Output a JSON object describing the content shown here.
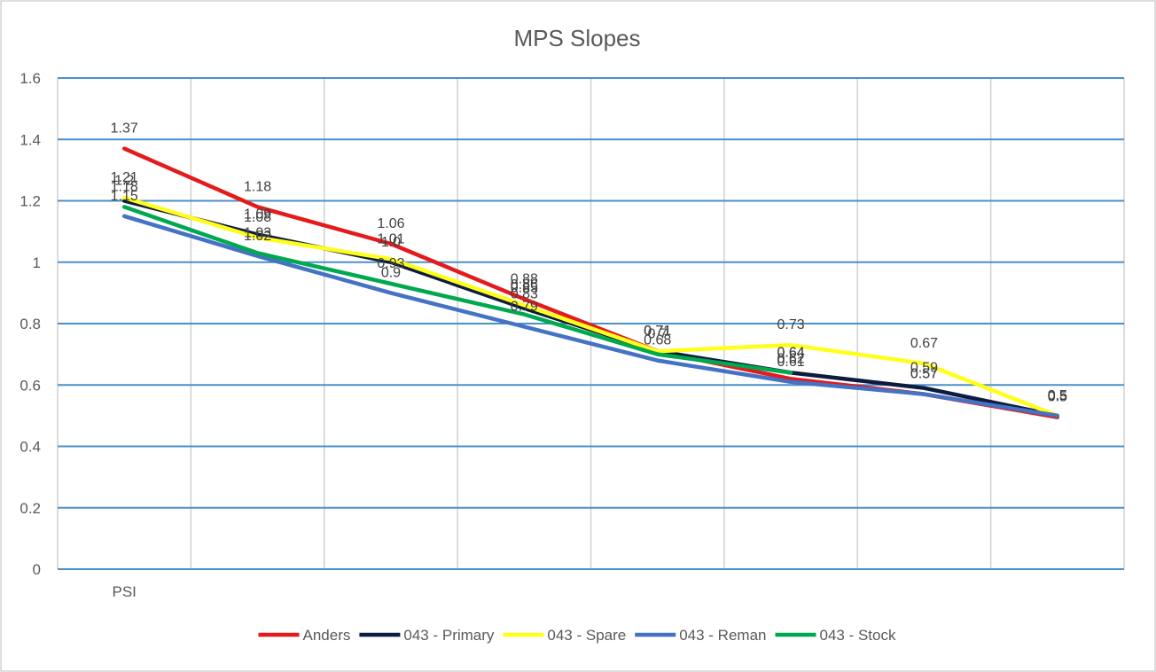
{
  "chart_data": {
    "type": "line",
    "title": "MPS Slopes",
    "xlabel": "",
    "ylabel": "",
    "x": [
      "PSI",
      "",
      "",
      "",
      "",
      "",
      "",
      ""
    ],
    "ylim": [
      0,
      1.6
    ],
    "yticks": [
      "0",
      "0.2",
      "0.4",
      "0.6",
      "0.8",
      "1",
      "1.2",
      "1.4",
      "1.6"
    ],
    "grid": true,
    "legend": "bottom",
    "series": [
      {
        "name": "Anders",
        "color": "#e41a1c",
        "values": [
          1.37,
          1.18,
          1.06,
          0.88,
          0.71,
          0.62,
          0.57,
          0.495
        ]
      },
      {
        "name": "043 - Primary",
        "color": "#0d1b3e",
        "values": [
          1.2,
          1.09,
          1.0,
          0.85,
          0.71,
          0.64,
          0.59,
          0.5
        ]
      },
      {
        "name": "043 - Spare",
        "color": "#ffff1a",
        "values": [
          1.21,
          1.08,
          1.01,
          0.86,
          0.71,
          0.73,
          0.67,
          0.5
        ]
      },
      {
        "name": "043 - Reman",
        "color": "#4472c4",
        "values": [
          1.15,
          1.02,
          0.9,
          0.79,
          0.68,
          0.61,
          0.57,
          0.5
        ]
      },
      {
        "name": "043 - Stock",
        "color": "#00a84f",
        "values": [
          1.18,
          1.03,
          0.93,
          0.83,
          0.7,
          0.64,
          null,
          null
        ]
      }
    ],
    "data_labels": [
      [
        "1.37",
        "1.18",
        "1.06",
        "0.88",
        "0.71",
        "0.62",
        "0.57",
        "0.5"
      ],
      [
        "1.2",
        "1.09",
        "1.0",
        "0.85",
        "0.71",
        "0.64",
        "0.59",
        "0.5"
      ],
      [
        "1.21",
        "1.08",
        "1.01",
        "0.86",
        "0.71",
        "0.73",
        "0.67",
        "0.5"
      ],
      [
        "1.15",
        "1.02",
        "0.9",
        "0.79",
        "0.68",
        "0.61",
        "0.57",
        "0.5"
      ],
      [
        "1.18",
        "1.03",
        "0.93",
        "0.83",
        "0.7",
        "0.64",
        "",
        ""
      ]
    ]
  }
}
